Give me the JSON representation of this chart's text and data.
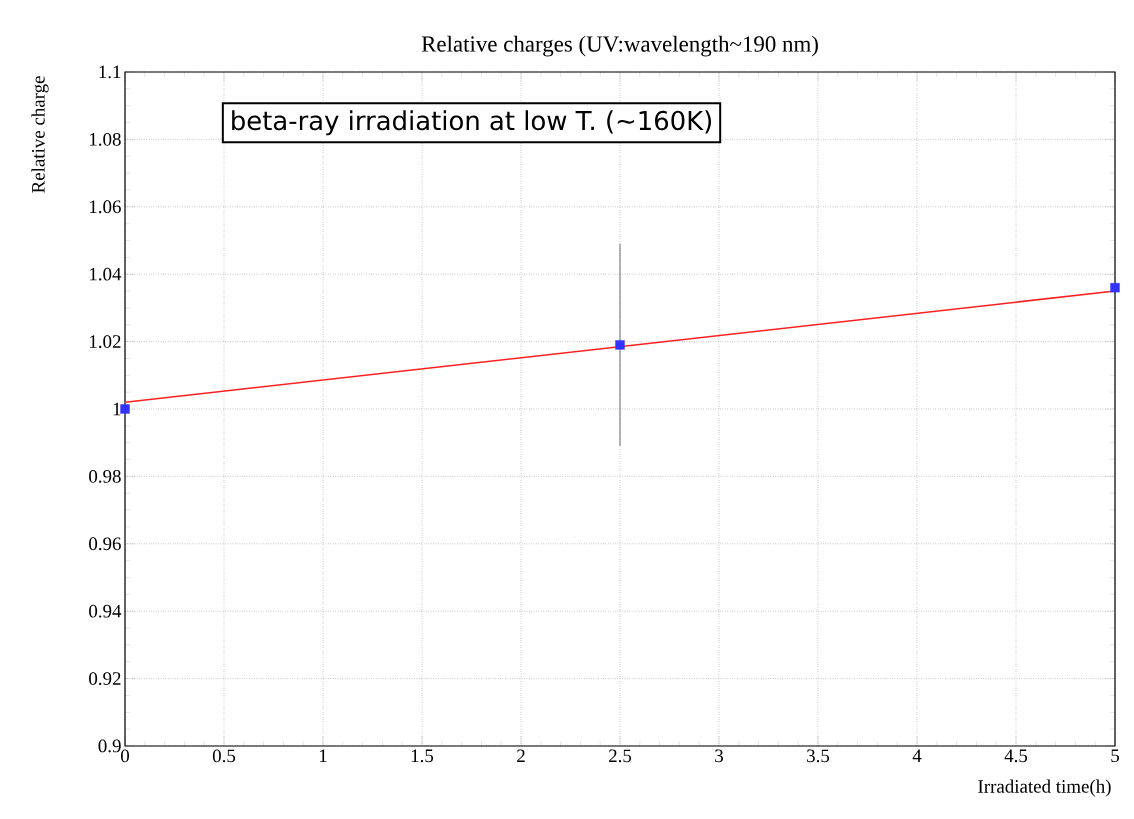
{
  "chart_data": {
    "type": "scatter",
    "title": "Relative charges (UV:wavelength~190 nm)",
    "xlabel": "Irradiated time(h)",
    "ylabel": "Relative charge",
    "annotations": [
      "beta-ray irradiation at low T. (~160K)"
    ],
    "series": [
      {
        "color": "#3333ff",
        "marker": "square",
        "x": [
          0,
          2.5,
          5
        ],
        "values": [
          1.0,
          1.019,
          1.036
        ],
        "errors": [
          null,
          [
            0.989,
            1.049
          ],
          null
        ]
      },
      {
        "type": "line",
        "color": "#ff2020",
        "marker": "none",
        "x": [
          0,
          5
        ],
        "values": [
          1.002,
          1.035
        ]
      }
    ],
    "xlim": [
      0,
      5
    ],
    "ylim": [
      0.9,
      1.1
    ],
    "xticks": [
      0,
      0.5,
      1,
      1.5,
      2,
      2.5,
      3,
      3.5,
      4,
      4.5,
      5
    ],
    "yticks": [
      0.9,
      0.92,
      0.94,
      0.96,
      0.98,
      1,
      1.02,
      1.04,
      1.06,
      1.08,
      1.1
    ],
    "grid": true
  }
}
